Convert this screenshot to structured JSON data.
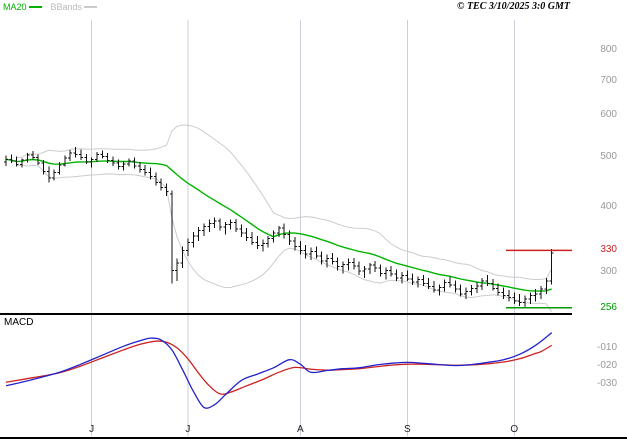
{
  "header": {
    "ma20_label": "MA20",
    "bbands_label": "BBands",
    "copyright": "© TEC 3/10/2025 3:0 GMT"
  },
  "chart_data": {
    "type": "ohlc",
    "description": "Daily OHLC price chart with MA20 and Bollinger Bands, MACD sub-panel, log price scale",
    "colors": {
      "ma20": "#00b300",
      "bbands": "#cccccc",
      "bars": "#111111",
      "grid": "#ccccdd",
      "axis_text": "#9a9a9a",
      "level_red": "#cc2222",
      "level_green": "#009900",
      "macd_blue": "#2222cc",
      "macd_red": "#cc2222"
    },
    "x_axis": {
      "month_labels": [
        "J",
        "J",
        "A",
        "S",
        "O"
      ],
      "month_tick_bar_indices": [
        16,
        34,
        55,
        75,
        95
      ]
    },
    "price_panel": {
      "scale": "log",
      "y_ticks": [
        800,
        700,
        600,
        500,
        400,
        300
      ],
      "levels": [
        {
          "value": 330,
          "label": "330",
          "color": "#cc2222"
        },
        {
          "value": 256,
          "label": "256",
          "color": "#009900"
        }
      ],
      "overlays": [
        {
          "name": "MA20",
          "window": 20
        },
        {
          "name": "BBands",
          "window": 20,
          "stdev_mult": 2
        }
      ],
      "ohlc": [
        [
          488,
          502,
          480,
          494
        ],
        [
          494,
          505,
          486,
          490
        ],
        [
          490,
          500,
          478,
          483
        ],
        [
          483,
          496,
          476,
          492
        ],
        [
          492,
          508,
          487,
          503
        ],
        [
          503,
          512,
          494,
          498
        ],
        [
          498,
          504,
          482,
          486
        ],
        [
          486,
          492,
          462,
          468
        ],
        [
          468,
          478,
          446,
          455
        ],
        [
          455,
          472,
          450,
          466
        ],
        [
          466,
          488,
          462,
          482
        ],
        [
          482,
          502,
          478,
          497
        ],
        [
          497,
          515,
          490,
          508
        ],
        [
          508,
          522,
          498,
          504
        ],
        [
          504,
          516,
          492,
          498
        ],
        [
          498,
          506,
          484,
          488
        ],
        [
          488,
          498,
          476,
          494
        ],
        [
          494,
          510,
          488,
          505
        ],
        [
          505,
          514,
          496,
          500
        ],
        [
          500,
          508,
          486,
          491
        ],
        [
          491,
          500,
          480,
          486
        ],
        [
          486,
          494,
          472,
          478
        ],
        [
          478,
          490,
          470,
          484
        ],
        [
          484,
          496,
          478,
          490
        ],
        [
          490,
          498,
          474,
          480
        ],
        [
          480,
          488,
          466,
          472
        ],
        [
          472,
          482,
          460,
          466
        ],
        [
          466,
          476,
          452,
          458
        ],
        [
          458,
          466,
          440,
          446
        ],
        [
          446,
          454,
          430,
          436
        ],
        [
          436,
          444,
          420,
          428
        ],
        [
          424,
          430,
          285,
          302
        ],
        [
          302,
          318,
          288,
          312
        ],
        [
          312,
          336,
          305,
          330
        ],
        [
          330,
          348,
          322,
          342
        ],
        [
          342,
          358,
          334,
          352
        ],
        [
          352,
          366,
          344,
          360
        ],
        [
          360,
          372,
          352,
          367
        ],
        [
          367,
          378,
          358,
          372
        ],
        [
          372,
          382,
          364,
          376
        ],
        [
          376,
          380,
          360,
          366
        ],
        [
          366,
          374,
          354,
          370
        ],
        [
          370,
          378,
          362,
          373
        ],
        [
          373,
          379,
          358,
          363
        ],
        [
          363,
          370,
          350,
          356
        ],
        [
          356,
          364,
          344,
          349
        ],
        [
          349,
          358,
          338,
          342
        ],
        [
          342,
          352,
          332,
          337
        ],
        [
          337,
          346,
          328,
          340
        ],
        [
          340,
          352,
          334,
          348
        ],
        [
          348,
          360,
          342,
          356
        ],
        [
          356,
          368,
          350,
          364
        ],
        [
          364,
          372,
          348,
          354
        ],
        [
          354,
          360,
          338,
          344
        ],
        [
          344,
          350,
          330,
          336
        ],
        [
          336,
          344,
          324,
          330
        ],
        [
          330,
          338,
          318,
          325
        ],
        [
          325,
          334,
          316,
          328
        ],
        [
          328,
          336,
          318,
          322
        ],
        [
          322,
          328,
          310,
          315
        ],
        [
          315,
          324,
          306,
          318
        ],
        [
          318,
          326,
          310,
          314
        ],
        [
          314,
          320,
          302,
          307
        ],
        [
          307,
          314,
          298,
          310
        ],
        [
          310,
          318,
          302,
          313
        ],
        [
          313,
          319,
          303,
          308
        ],
        [
          308,
          314,
          296,
          301
        ],
        [
          301,
          308,
          292,
          304
        ],
        [
          304,
          312,
          297,
          309
        ],
        [
          309,
          315,
          300,
          305
        ],
        [
          305,
          310,
          294,
          298
        ],
        [
          298,
          306,
          290,
          302
        ],
        [
          302,
          308,
          294,
          297
        ],
        [
          297,
          303,
          288,
          292
        ],
        [
          292,
          300,
          285,
          295
        ],
        [
          295,
          302,
          288,
          291
        ],
        [
          291,
          298,
          283,
          287
        ],
        [
          287,
          294,
          280,
          290
        ],
        [
          290,
          296,
          282,
          285
        ],
        [
          285,
          292,
          278,
          281
        ],
        [
          281,
          288,
          274,
          277
        ],
        [
          277,
          284,
          270,
          280
        ],
        [
          280,
          290,
          275,
          286
        ],
        [
          286,
          294,
          280,
          283
        ],
        [
          283,
          289,
          274,
          278
        ],
        [
          278,
          284,
          269,
          272
        ],
        [
          272,
          280,
          266,
          275
        ],
        [
          275,
          283,
          270,
          279
        ],
        [
          279,
          287,
          273,
          282
        ],
        [
          282,
          292,
          277,
          288
        ],
        [
          288,
          296,
          282,
          285
        ],
        [
          285,
          291,
          276,
          279
        ],
        [
          279,
          285,
          270,
          274
        ],
        [
          274,
          280,
          266,
          270
        ],
        [
          270,
          277,
          263,
          268
        ],
        [
          268,
          274,
          260,
          264
        ],
        [
          264,
          272,
          258,
          262
        ],
        [
          262,
          270,
          257,
          266
        ],
        [
          266,
          274,
          260,
          270
        ],
        [
          270,
          278,
          263,
          272
        ],
        [
          272,
          282,
          266,
          278
        ],
        [
          278,
          292,
          272,
          288
        ],
        [
          288,
          332,
          284,
          326
        ]
      ]
    },
    "macd_panel": {
      "label": "MACD",
      "y_ticks": [
        {
          "value": -10,
          "label": "-010"
        },
        {
          "value": -20,
          "label": "-020"
        },
        {
          "value": -30,
          "label": "-030"
        }
      ],
      "macd_color": "#2222cc",
      "signal_color": "#cc2222",
      "macd_points": [
        [
          0,
          -31
        ],
        [
          5,
          -27.5
        ],
        [
          10,
          -23.5
        ],
        [
          14,
          -19
        ],
        [
          18,
          -14
        ],
        [
          22,
          -9
        ],
        [
          25,
          -6
        ],
        [
          27,
          -4.5
        ],
        [
          29,
          -5.5
        ],
        [
          31,
          -11
        ],
        [
          33,
          -22
        ],
        [
          35,
          -34
        ],
        [
          37,
          -43
        ],
        [
          39,
          -41.5
        ],
        [
          41,
          -36
        ],
        [
          44,
          -28
        ],
        [
          47,
          -24.5
        ],
        [
          50,
          -21
        ],
        [
          53,
          -16.5
        ],
        [
          55,
          -19
        ],
        [
          57,
          -23.5
        ],
        [
          60,
          -22.5
        ],
        [
          63,
          -21.5
        ],
        [
          66,
          -21
        ],
        [
          69,
          -19.5
        ],
        [
          72,
          -18.5
        ],
        [
          75,
          -18
        ],
        [
          78,
          -18.5
        ],
        [
          81,
          -19.2
        ],
        [
          84,
          -19.8
        ],
        [
          87,
          -19.2
        ],
        [
          90,
          -18
        ],
        [
          93,
          -16.5
        ],
        [
          96,
          -13.5
        ],
        [
          99,
          -8.5
        ],
        [
          102,
          -1.5
        ]
      ],
      "signal_points": [
        [
          0,
          -29
        ],
        [
          5,
          -26.5
        ],
        [
          10,
          -23.8
        ],
        [
          14,
          -20
        ],
        [
          18,
          -15.5
        ],
        [
          22,
          -11
        ],
        [
          25,
          -8
        ],
        [
          28,
          -6.2
        ],
        [
          30,
          -6.8
        ],
        [
          32,
          -10
        ],
        [
          34,
          -16
        ],
        [
          36,
          -24
        ],
        [
          38,
          -31
        ],
        [
          40,
          -35.5
        ],
        [
          42,
          -34.5
        ],
        [
          45,
          -31
        ],
        [
          48,
          -27.5
        ],
        [
          51,
          -23.5
        ],
        [
          54,
          -20.8
        ],
        [
          57,
          -21.8
        ],
        [
          60,
          -22.3
        ],
        [
          63,
          -22
        ],
        [
          66,
          -21.5
        ],
        [
          69,
          -20.5
        ],
        [
          72,
          -19.5
        ],
        [
          75,
          -19
        ],
        [
          78,
          -19
        ],
        [
          81,
          -19.3
        ],
        [
          84,
          -19.6
        ],
        [
          87,
          -19.4
        ],
        [
          90,
          -18.8
        ],
        [
          93,
          -17.8
        ],
        [
          96,
          -16
        ],
        [
          99,
          -13
        ],
        [
          100,
          -12
        ],
        [
          102,
          -8.5
        ]
      ]
    }
  }
}
